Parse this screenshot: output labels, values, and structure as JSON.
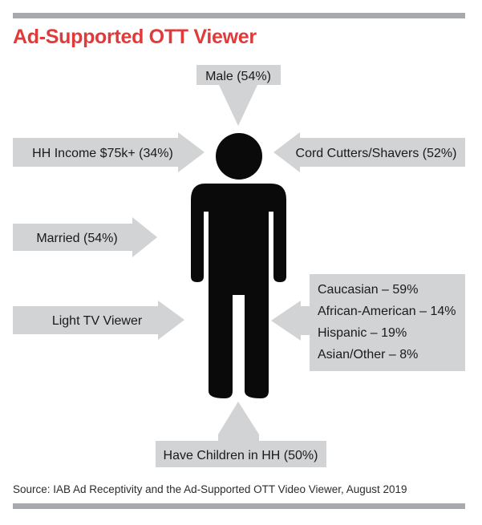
{
  "title": "Ad-Supported OTT Viewer",
  "colors": {
    "title": "#e03a3a",
    "box": "#d1d3d4",
    "figure": "#0a0a0a",
    "rule": "#a7a9ac"
  },
  "icon": "person-silhouette-icon",
  "labels": {
    "male": "Male (54%)",
    "income": "HH Income $75k+ (34%)",
    "cord": "Cord Cutters/Shavers (52%)",
    "married": "Married (54%)",
    "light_tv": "Light TV Viewer",
    "ethnicity": [
      "Caucasian – 59%",
      "African-American – 14%",
      "Hispanic – 19%",
      "Asian/Other – 8%"
    ],
    "children": "Have Children in HH (50%)"
  },
  "source": "Source: IAB Ad Receptivity and the Ad-Supported OTT Video Viewer, August 2019"
}
